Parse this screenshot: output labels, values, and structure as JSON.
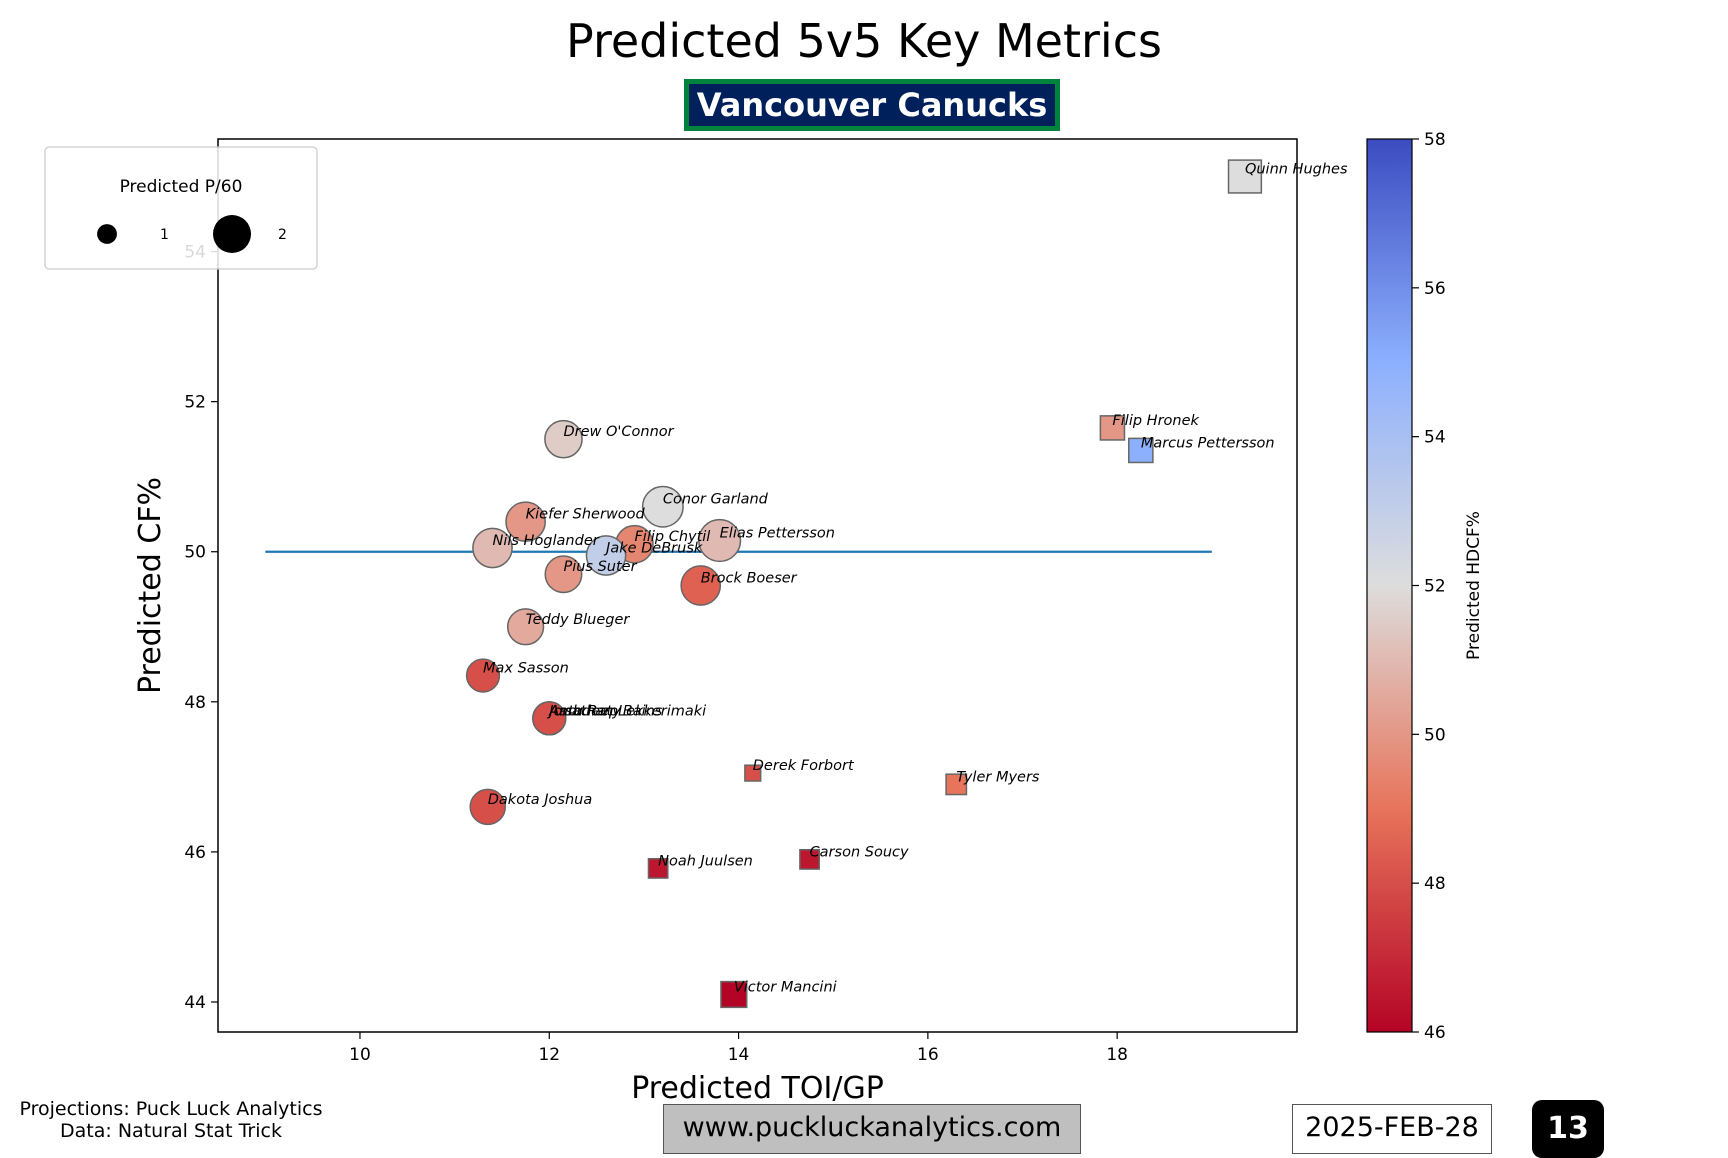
{
  "header": {
    "title": "Predicted 5v5 Key Metrics",
    "team": "Vancouver Canucks"
  },
  "footer": {
    "projections": "Projections: Puck Luck Analytics",
    "data_source": "Data: Natural Stat Trick",
    "website": "www.puckluckanalytics.com",
    "date": "2025-FEB-28",
    "page_number": "13"
  },
  "colors": {
    "team_badge_bg": "#00205B",
    "team_badge_border": "#00843D",
    "reference_line": "#1f77b4",
    "colormap_low": "#b40426",
    "colormap_mid": "#dddddd",
    "colormap_high": "#3b4cc0"
  },
  "chart_data": {
    "type": "scatter",
    "xlabel": "Predicted TOI/GP",
    "ylabel": "Predicted CF%",
    "xlim": [
      8.5,
      19.9
    ],
    "ylim": [
      43.6,
      55.5
    ],
    "x_ticks": [
      10,
      12,
      14,
      16,
      18
    ],
    "y_ticks": [
      44,
      46,
      48,
      50,
      52,
      54
    ],
    "reference_line": {
      "y": 50,
      "x_from": 9,
      "x_to": 19
    },
    "grid": false,
    "size_legend": {
      "title": "Predicted P/60",
      "entries": [
        {
          "label": "1",
          "value": 1
        },
        {
          "label": "2",
          "value": 2
        }
      ],
      "placement": "top-left"
    },
    "colorbar": {
      "label": "Predicted HDCF%",
      "min": 46,
      "max": 58,
      "ticks": [
        46,
        48,
        50,
        52,
        54,
        56,
        58
      ],
      "colormap": "coolwarm_r"
    },
    "points": [
      {
        "player": "Quinn Hughes",
        "x": 19.35,
        "y": 55.0,
        "p60": 1.3,
        "hdcf": 52.0,
        "marker": "square"
      },
      {
        "player": "Filip Hronek",
        "x": 17.95,
        "y": 51.65,
        "p60": 0.7,
        "hdcf": 50.0,
        "marker": "square"
      },
      {
        "player": "Marcus Pettersson",
        "x": 18.25,
        "y": 51.35,
        "p60": 0.7,
        "hdcf": 55.0,
        "marker": "square"
      },
      {
        "player": "Drew O'Connor",
        "x": 12.15,
        "y": 51.5,
        "p60": 1.35,
        "hdcf": 51.5,
        "marker": "circle"
      },
      {
        "player": "Conor Garland",
        "x": 13.2,
        "y": 50.6,
        "p60": 1.6,
        "hdcf": 52.0,
        "marker": "circle"
      },
      {
        "player": "Kiefer Sherwood",
        "x": 11.75,
        "y": 50.4,
        "p60": 1.5,
        "hdcf": 50.0,
        "marker": "circle"
      },
      {
        "player": "Elias Pettersson",
        "x": 13.8,
        "y": 50.15,
        "p60": 1.7,
        "hdcf": 51.0,
        "marker": "circle"
      },
      {
        "player": "Filip Chytil",
        "x": 12.9,
        "y": 50.1,
        "p60": 1.35,
        "hdcf": 49.5,
        "marker": "circle"
      },
      {
        "player": "Nils Hoglander",
        "x": 11.4,
        "y": 50.05,
        "p60": 1.5,
        "hdcf": 51.0,
        "marker": "circle"
      },
      {
        "player": "Jake DeBrusk",
        "x": 12.6,
        "y": 49.95,
        "p60": 1.5,
        "hdcf": 53.0,
        "marker": "circle"
      },
      {
        "player": "Pius Suter",
        "x": 12.15,
        "y": 49.7,
        "p60": 1.3,
        "hdcf": 50.0,
        "marker": "circle"
      },
      {
        "player": "Brock Boeser",
        "x": 13.6,
        "y": 49.55,
        "p60": 1.5,
        "hdcf": 48.5,
        "marker": "circle"
      },
      {
        "player": "Teddy Blueger",
        "x": 11.75,
        "y": 49.0,
        "p60": 1.25,
        "hdcf": 50.5,
        "marker": "circle"
      },
      {
        "player": "Max Sasson",
        "x": 11.3,
        "y": 48.35,
        "p60": 1.05,
        "hdcf": 48.0,
        "marker": "circle"
      },
      {
        "player": "Arshdeep Bains",
        "x": 12.0,
        "y": 47.78,
        "p60": 1.05,
        "hdcf": 47.5,
        "marker": "circle"
      },
      {
        "player": "Jonathan Lekkerimaki",
        "x": 12.0,
        "y": 47.78,
        "p60": 1.05,
        "hdcf": 47.8,
        "marker": "circle"
      },
      {
        "player": "Aatu Raty",
        "x": 12.0,
        "y": 47.78,
        "p60": 1.05,
        "hdcf": 48.0,
        "marker": "circle"
      },
      {
        "player": "Derek Forbort",
        "x": 14.15,
        "y": 47.05,
        "p60": 0.3,
        "hdcf": 48.0,
        "marker": "square"
      },
      {
        "player": "Tyler Myers",
        "x": 16.3,
        "y": 46.9,
        "p60": 0.5,
        "hdcf": 49.0,
        "marker": "square"
      },
      {
        "player": "Dakota Joshua",
        "x": 11.35,
        "y": 46.6,
        "p60": 1.2,
        "hdcf": 48.0,
        "marker": "circle"
      },
      {
        "player": "Carson Soucy",
        "x": 14.75,
        "y": 45.9,
        "p60": 0.45,
        "hdcf": 46.5,
        "marker": "square"
      },
      {
        "player": "Noah Juulsen",
        "x": 13.15,
        "y": 45.78,
        "p60": 0.45,
        "hdcf": 46.5,
        "marker": "square"
      },
      {
        "player": "Victor Mancini",
        "x": 13.95,
        "y": 44.1,
        "p60": 0.8,
        "hdcf": 46.0,
        "marker": "square"
      }
    ]
  }
}
